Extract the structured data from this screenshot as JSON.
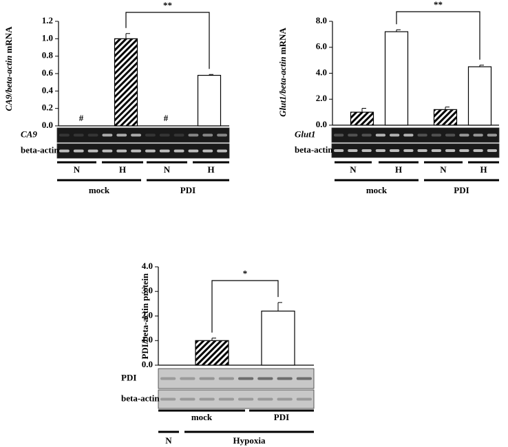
{
  "chart_data": [
    {
      "type": "bar",
      "ylabel_italic": "CA9/beta-actin",
      "ylabel_plain": "mRNA",
      "categories": [
        "N",
        "H",
        "N",
        "H"
      ],
      "groups": [
        "mock",
        "PDI"
      ],
      "values": [
        null,
        1.0,
        null,
        0.58
      ],
      "errors": [
        null,
        0.06,
        null,
        0.01
      ],
      "fills": [
        "hatch",
        "hatch",
        "white",
        "white"
      ],
      "ylim": [
        0,
        1.2
      ],
      "yticks": [
        {
          "value": 0,
          "label": "0.0"
        },
        0.2,
        0.4,
        0.6,
        0.8,
        {
          "value": 1,
          "label": "1.0"
        },
        1.2
      ],
      "annotations": [
        {
          "text": "#",
          "index": 0
        },
        {
          "text": "#",
          "index": 2
        }
      ],
      "significance": {
        "label": "**",
        "from": 1,
        "to": 3
      },
      "gel_rows": [
        "CA9",
        "beta-actin"
      ]
    },
    {
      "type": "bar",
      "ylabel_italic": "Glut1/beta-actin",
      "ylabel_plain": "mRNA",
      "categories": [
        "N",
        "H",
        "N",
        "H"
      ],
      "groups": [
        "mock",
        "PDI"
      ],
      "values": [
        1.0,
        7.2,
        1.2,
        4.5
      ],
      "errors": [
        0.3,
        0.15,
        0.2,
        0.12
      ],
      "fills": [
        "hatch",
        "white",
        "hatch",
        "white"
      ],
      "ylim": [
        0,
        8
      ],
      "yticks": [
        {
          "value": 0,
          "label": "0.0"
        },
        {
          "value": 2,
          "label": "2.0"
        },
        {
          "value": 4,
          "label": "4.0"
        },
        {
          "value": 6,
          "label": "6.0"
        },
        {
          "value": 8,
          "label": "8.0"
        }
      ],
      "annotations": [],
      "significance": {
        "label": "**",
        "from": 1,
        "to": 3
      },
      "gel_rows": [
        "Glut1",
        "beta-actin"
      ]
    },
    {
      "type": "bar",
      "ylabel_italic": "",
      "ylabel_plain": "PDI/beta-actin protein",
      "categories": [
        "mock",
        "PDI"
      ],
      "groups": [
        "N",
        "Hypoxia"
      ],
      "values": [
        1.0,
        2.2
      ],
      "errors": [
        0.1,
        0.35
      ],
      "fills": [
        "hatch",
        "white"
      ],
      "ylim": [
        0,
        4
      ],
      "yticks": [
        {
          "value": 0,
          "label": "0.0"
        },
        {
          "value": 1,
          "label": "1.0"
        },
        {
          "value": 2,
          "label": "2.0"
        },
        {
          "value": 3,
          "label": "3.0"
        },
        {
          "value": 4,
          "label": "4.0"
        }
      ],
      "annotations": [],
      "significance": {
        "label": "*",
        "from": 0,
        "to": 1
      },
      "gel_rows": [
        "PDI",
        "beta-actin"
      ]
    }
  ]
}
